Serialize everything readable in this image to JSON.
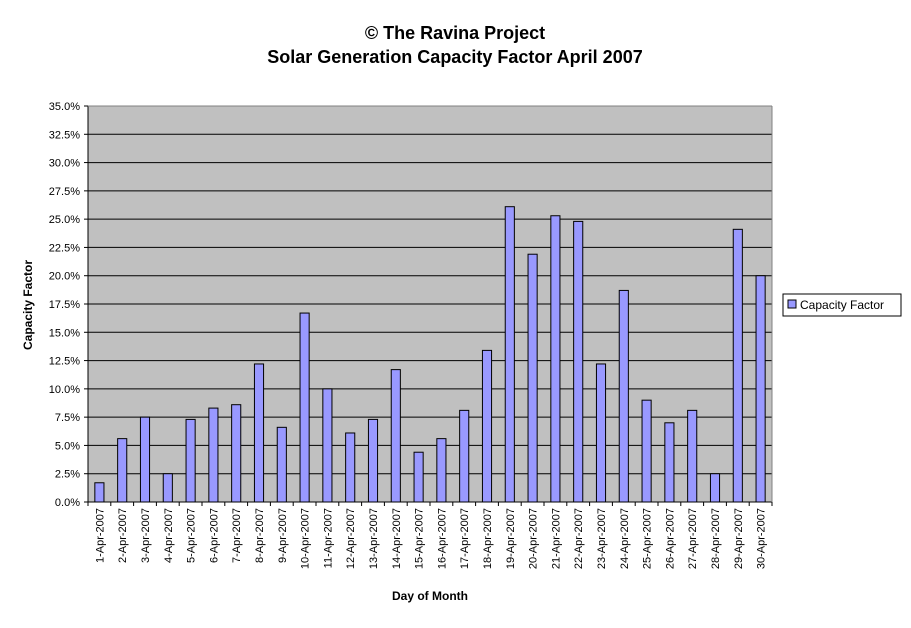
{
  "chart_data": {
    "type": "bar",
    "title_lines": [
      "© The Ravina Project",
      "Solar Generation Capacity Factor April 2007"
    ],
    "xlabel": "Day of Month",
    "ylabel": "Capacity Factor",
    "ylim": [
      0,
      35
    ],
    "y_ticks": [
      0,
      2.5,
      5,
      7.5,
      10,
      12.5,
      15,
      17.5,
      20,
      22.5,
      25,
      27.5,
      30,
      32.5,
      35
    ],
    "y_tick_labels": [
      "0.0%",
      "2.5%",
      "5.0%",
      "7.5%",
      "10.0%",
      "12.5%",
      "15.0%",
      "17.5%",
      "20.0%",
      "22.5%",
      "25.0%",
      "27.5%",
      "30.0%",
      "32.5%",
      "35.0%"
    ],
    "grid": "horizontal",
    "legend_position": "right",
    "plot_background": "#c0c0c0",
    "categories": [
      "1-Apr-2007",
      "2-Apr-2007",
      "3-Apr-2007",
      "4-Apr-2007",
      "5-Apr-2007",
      "6-Apr-2007",
      "7-Apr-2007",
      "8-Apr-2007",
      "9-Apr-2007",
      "10-Apr-2007",
      "11-Apr-2007",
      "12-Apr-2007",
      "13-Apr-2007",
      "14-Apr-2007",
      "15-Apr-2007",
      "16-Apr-2007",
      "17-Apr-2007",
      "18-Apr-2007",
      "19-Apr-2007",
      "20-Apr-2007",
      "21-Apr-2007",
      "22-Apr-2007",
      "23-Apr-2007",
      "24-Apr-2007",
      "25-Apr-2007",
      "26-Apr-2007",
      "27-Apr-2007",
      "28-Apr-2007",
      "29-Apr-2007",
      "30-Apr-2007"
    ],
    "series": [
      {
        "name": "Capacity Factor",
        "color": "#9999ff",
        "values": [
          1.7,
          5.6,
          7.5,
          2.5,
          7.3,
          8.3,
          8.6,
          12.2,
          6.6,
          16.7,
          10.0,
          6.1,
          7.3,
          11.7,
          4.4,
          5.6,
          8.1,
          13.4,
          26.1,
          21.9,
          25.3,
          24.8,
          12.2,
          18.7,
          9.0,
          7.0,
          8.1,
          2.5,
          24.1,
          20.0
        ]
      }
    ]
  }
}
